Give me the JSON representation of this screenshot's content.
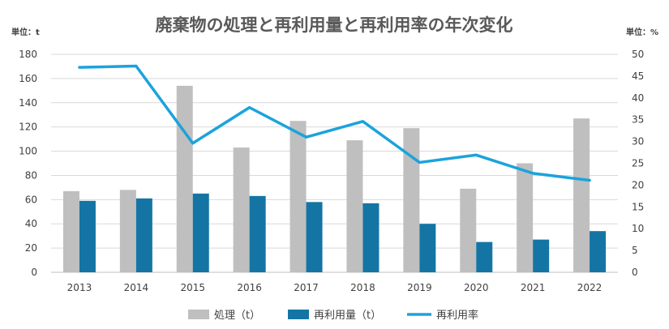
{
  "chart_data": {
    "type": "bar",
    "title": "廃棄物の処理と再利用量と再利用率の年次変化",
    "left_axis_unit": "単位：t",
    "right_axis_unit": "単位：%",
    "categories": [
      "2013",
      "2014",
      "2015",
      "2016",
      "2017",
      "2018",
      "2019",
      "2020",
      "2021",
      "2022"
    ],
    "ylim": [
      0,
      180
    ],
    "y_ticks": [
      0,
      20,
      40,
      60,
      80,
      100,
      120,
      140,
      160,
      180
    ],
    "y2lim": [
      0,
      50
    ],
    "y2_ticks": [
      0,
      5,
      10,
      15,
      20,
      25,
      30,
      35,
      40,
      45,
      50
    ],
    "grid": true,
    "legend_position": "bottom",
    "series": [
      {
        "name": "処理（t）",
        "type": "bar",
        "axis": "left",
        "color": "#bfbfbf",
        "values": [
          67,
          68,
          154,
          103,
          125,
          109,
          119,
          69,
          90,
          127
        ]
      },
      {
        "name": "再利用量（t）",
        "type": "bar",
        "axis": "left",
        "color": "#1475a4",
        "values": [
          59,
          61,
          65,
          63,
          58,
          57,
          40,
          25,
          27,
          34
        ]
      },
      {
        "name": "再利用率",
        "type": "line",
        "axis": "right",
        "color": "#1ba3dc",
        "values": [
          47.0,
          47.3,
          29.6,
          37.8,
          31.0,
          34.6,
          25.2,
          26.9,
          22.7,
          21.1
        ]
      }
    ]
  }
}
